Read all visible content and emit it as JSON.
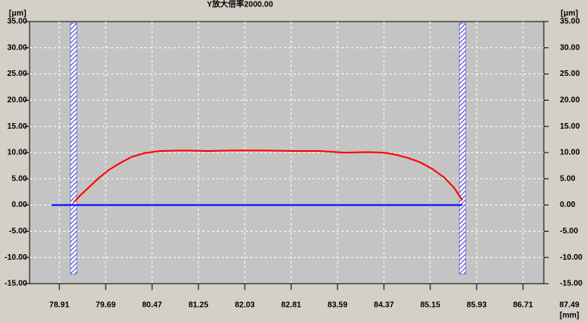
{
  "chart_data": {
    "type": "line",
    "title": "Y放大倍率2000.00",
    "y_unit": "[μm]",
    "x_unit": "[mm]",
    "xlim": [
      78.41,
      87.06
    ],
    "xticks": [
      78.91,
      79.69,
      80.47,
      81.25,
      82.03,
      82.81,
      83.59,
      84.37,
      85.15,
      85.93,
      86.71,
      87.49
    ],
    "ylim": [
      -15,
      35
    ],
    "yticks": [
      {
        "value": -15,
        "label": "-15.00"
      },
      {
        "value": -10,
        "label": "-10.00"
      },
      {
        "value": -5,
        "label": "-5.00"
      },
      {
        "value": 0,
        "label": "0.00"
      },
      {
        "value": 5,
        "label": "5.00"
      },
      {
        "value": 10,
        "label": "10.00"
      },
      {
        "value": 15,
        "label": "15.00"
      },
      {
        "value": 20,
        "label": "20.00"
      },
      {
        "value": 25,
        "label": "25.00"
      },
      {
        "value": 30,
        "label": "30.00"
      },
      {
        "value": 35,
        "label": "35.00"
      }
    ],
    "grid": true,
    "cursors": [
      79.15,
      85.69
    ],
    "cursor_color": "#3a3ad0",
    "series": [
      {
        "color": "#0000ff",
        "x": [
          78.78,
          85.69
        ],
        "values": [
          0,
          0
        ]
      },
      {
        "color": "#ff0000",
        "x": [
          79.15,
          79.26,
          79.39,
          79.56,
          79.73,
          79.93,
          80.13,
          80.34,
          80.6,
          81.01,
          81.41,
          81.81,
          82.35,
          82.89,
          83.29,
          83.7,
          84.1,
          84.37,
          84.57,
          84.77,
          84.97,
          85.17,
          85.38,
          85.55,
          85.69
        ],
        "values": [
          0.5,
          1.8,
          3.2,
          5.0,
          6.6,
          8.0,
          9.2,
          9.9,
          10.3,
          10.4,
          10.3,
          10.4,
          10.4,
          10.3,
          10.3,
          10.0,
          10.1,
          10.0,
          9.6,
          9.0,
          8.2,
          7.0,
          5.3,
          3.3,
          0.9
        ]
      }
    ]
  }
}
